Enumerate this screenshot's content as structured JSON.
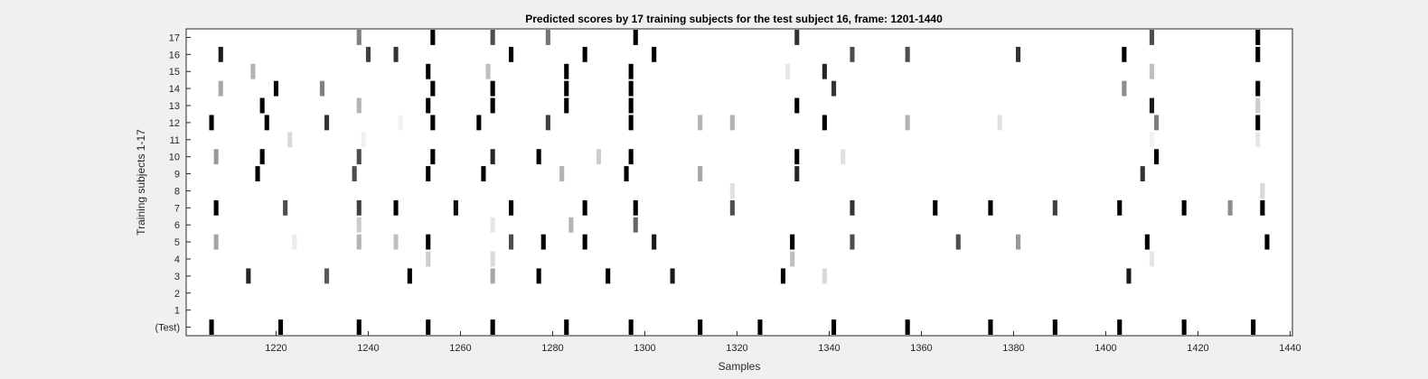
{
  "chart_data": {
    "type": "heatmap",
    "title": "Predicted scores by 17 training subjects for the test subject 16, frame: 1201-1440",
    "xlabel": "Samples",
    "ylabel": "Training subjects 1-17",
    "xlim": [
      1201,
      1440
    ],
    "x_ticks": [
      1220,
      1240,
      1260,
      1280,
      1300,
      1320,
      1340,
      1360,
      1380,
      1400,
      1420,
      1440
    ],
    "y_categories": [
      "(Test)",
      "1",
      "2",
      "3",
      "4",
      "5",
      "6",
      "7",
      "8",
      "9",
      "10",
      "11",
      "12",
      "13",
      "14",
      "15",
      "16",
      "17"
    ],
    "value_range": [
      0,
      1
    ],
    "colormap": "white (0) to black (1)",
    "grid": false,
    "rows": [
      {
        "label": "(Test)",
        "cells": [
          [
            1206,
            1
          ],
          [
            1221,
            1
          ],
          [
            1238,
            1
          ],
          [
            1253,
            1
          ],
          [
            1267,
            1
          ],
          [
            1283,
            1
          ],
          [
            1297,
            1
          ],
          [
            1312,
            1
          ],
          [
            1325,
            1
          ],
          [
            1341,
            1
          ],
          [
            1357,
            1
          ],
          [
            1375,
            1
          ],
          [
            1389,
            1
          ],
          [
            1403,
            1
          ],
          [
            1417,
            1
          ],
          [
            1432,
            1
          ]
        ]
      },
      {
        "label": "1",
        "cells": []
      },
      {
        "label": "2",
        "cells": []
      },
      {
        "label": "3",
        "cells": [
          [
            1214,
            0.85
          ],
          [
            1231,
            0.65
          ],
          [
            1249,
            1
          ],
          [
            1267,
            0.35
          ],
          [
            1277,
            1
          ],
          [
            1292,
            1
          ],
          [
            1306,
            0.9
          ],
          [
            1330,
            1
          ],
          [
            1339,
            0.15
          ],
          [
            1405,
            0.9
          ]
        ]
      },
      {
        "label": "4",
        "cells": [
          [
            1253,
            0.2
          ],
          [
            1267,
            0.15
          ],
          [
            1332,
            0.25
          ],
          [
            1410,
            0.1
          ]
        ]
      },
      {
        "label": "5",
        "cells": [
          [
            1207,
            0.35
          ],
          [
            1224,
            0.08
          ],
          [
            1238,
            0.3
          ],
          [
            1246,
            0.25
          ],
          [
            1253,
            1
          ],
          [
            1271,
            0.7
          ],
          [
            1278,
            1
          ],
          [
            1287,
            1
          ],
          [
            1302,
            0.9
          ],
          [
            1332,
            1
          ],
          [
            1345,
            0.7
          ],
          [
            1368,
            0.7
          ],
          [
            1381,
            0.4
          ],
          [
            1409,
            1
          ],
          [
            1435,
            1
          ]
        ]
      },
      {
        "label": "6",
        "cells": [
          [
            1238,
            0.2
          ],
          [
            1267,
            0.1
          ],
          [
            1284,
            0.3
          ],
          [
            1298,
            0.6
          ]
        ]
      },
      {
        "label": "7",
        "cells": [
          [
            1207,
            1
          ],
          [
            1222,
            0.7
          ],
          [
            1238,
            0.75
          ],
          [
            1246,
            1
          ],
          [
            1259,
            0.95
          ],
          [
            1271,
            1
          ],
          [
            1287,
            1
          ],
          [
            1298,
            1
          ],
          [
            1319,
            0.7
          ],
          [
            1345,
            0.8
          ],
          [
            1363,
            1
          ],
          [
            1375,
            1
          ],
          [
            1389,
            0.75
          ],
          [
            1403,
            1
          ],
          [
            1417,
            1
          ],
          [
            1427,
            0.45
          ],
          [
            1434,
            1
          ]
        ]
      },
      {
        "label": "8",
        "cells": [
          [
            1319,
            0.12
          ],
          [
            1434,
            0.15
          ]
        ]
      },
      {
        "label": "9",
        "cells": [
          [
            1216,
            1
          ],
          [
            1237,
            0.7
          ],
          [
            1253,
            1
          ],
          [
            1265,
            1
          ],
          [
            1282,
            0.3
          ],
          [
            1296,
            1
          ],
          [
            1312,
            0.35
          ],
          [
            1333,
            0.85
          ],
          [
            1408,
            0.8
          ]
        ]
      },
      {
        "label": "10",
        "cells": [
          [
            1207,
            0.4
          ],
          [
            1217,
            1
          ],
          [
            1238,
            0.7
          ],
          [
            1254,
            1
          ],
          [
            1267,
            0.85
          ],
          [
            1277,
            1
          ],
          [
            1290,
            0.2
          ],
          [
            1297,
            1
          ],
          [
            1333,
            1
          ],
          [
            1343,
            0.12
          ],
          [
            1411,
            1
          ]
        ]
      },
      {
        "label": "11",
        "cells": [
          [
            1223,
            0.15
          ],
          [
            1239,
            0.06
          ],
          [
            1410,
            0.05
          ],
          [
            1433,
            0.1
          ]
        ]
      },
      {
        "label": "12",
        "cells": [
          [
            1206,
            1
          ],
          [
            1218,
            1
          ],
          [
            1231,
            0.8
          ],
          [
            1247,
            0.06
          ],
          [
            1254,
            1
          ],
          [
            1264,
            1
          ],
          [
            1279,
            0.75
          ],
          [
            1297,
            1
          ],
          [
            1312,
            0.3
          ],
          [
            1319,
            0.3
          ],
          [
            1339,
            1
          ],
          [
            1357,
            0.3
          ],
          [
            1377,
            0.12
          ],
          [
            1411,
            0.5
          ],
          [
            1433,
            1
          ]
        ]
      },
      {
        "label": "13",
        "cells": [
          [
            1217,
            1
          ],
          [
            1238,
            0.3
          ],
          [
            1253,
            1
          ],
          [
            1267,
            1
          ],
          [
            1283,
            1
          ],
          [
            1297,
            1
          ],
          [
            1333,
            1
          ],
          [
            1410,
            0.9
          ],
          [
            1433,
            0.2
          ]
        ]
      },
      {
        "label": "14",
        "cells": [
          [
            1208,
            0.35
          ],
          [
            1220,
            1
          ],
          [
            1230,
            0.5
          ],
          [
            1254,
            1
          ],
          [
            1267,
            1
          ],
          [
            1283,
            1
          ],
          [
            1297,
            1
          ],
          [
            1341,
            0.8
          ],
          [
            1404,
            0.45
          ],
          [
            1433,
            1
          ]
        ]
      },
      {
        "label": "15",
        "cells": [
          [
            1215,
            0.3
          ],
          [
            1253,
            1
          ],
          [
            1266,
            0.25
          ],
          [
            1283,
            1
          ],
          [
            1297,
            1
          ],
          [
            1331,
            0.1
          ],
          [
            1339,
            0.85
          ],
          [
            1410,
            0.25
          ]
        ]
      },
      {
        "label": "16",
        "cells": [
          [
            1208,
            0.9
          ],
          [
            1240,
            0.75
          ],
          [
            1246,
            0.8
          ],
          [
            1271,
            1
          ],
          [
            1287,
            1
          ],
          [
            1302,
            1
          ],
          [
            1345,
            0.7
          ],
          [
            1357,
            0.7
          ],
          [
            1381,
            0.8
          ],
          [
            1404,
            1
          ],
          [
            1433,
            1
          ]
        ]
      },
      {
        "label": "17",
        "cells": [
          [
            1238,
            0.5
          ],
          [
            1254,
            1
          ],
          [
            1267,
            0.7
          ],
          [
            1279,
            0.55
          ],
          [
            1298,
            1
          ],
          [
            1333,
            0.8
          ],
          [
            1410,
            0.7
          ],
          [
            1433,
            1
          ]
        ]
      }
    ]
  }
}
